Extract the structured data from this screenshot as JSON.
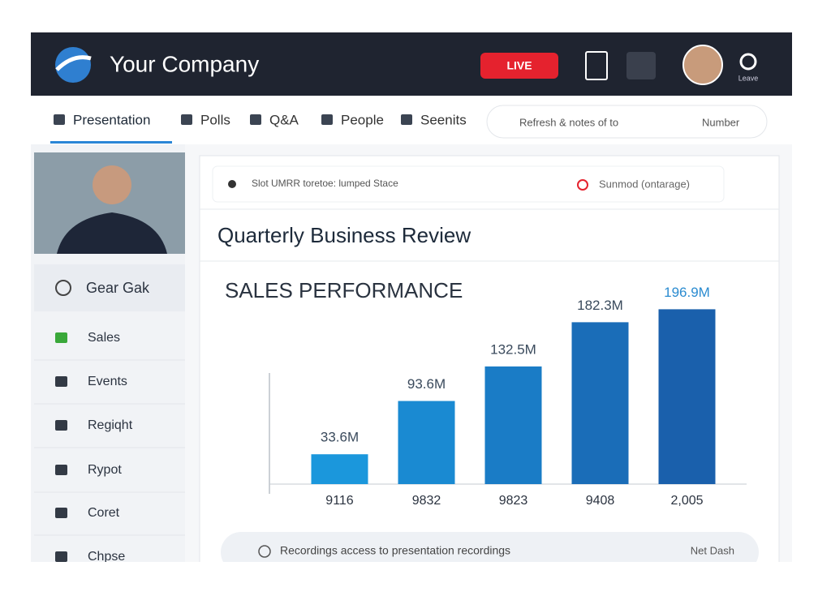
{
  "header": {
    "company": "Your Company",
    "live_button": "LIVE",
    "profile_label": "Leave"
  },
  "tabs": [
    "Presentation",
    "Polls",
    "Q&A",
    "People",
    "Seenits"
  ],
  "toolbar_right": {
    "text": "Refresh & notes of to",
    "menu": "Number"
  },
  "sidebar": {
    "section": "Gear Gak",
    "items": [
      "Sales",
      "Events",
      "Regiqht",
      "Rypot",
      "Coret",
      "Chpse"
    ]
  },
  "slide_toolbar": {
    "left": "Slot UMRR toretoe: lumped Stace",
    "right": "Sunmod (ontarage)"
  },
  "slide_title": "Quarterly Business Review",
  "chart_data": {
    "type": "bar",
    "title": "SALES PERFORMANCE",
    "categories": [
      "9116",
      "9832",
      "9823",
      "9408",
      "2,005"
    ],
    "values": [
      33.6,
      93.6,
      132.5,
      182.3,
      196.9
    ],
    "value_labels": [
      "33.6M",
      "93.6M",
      "132.5M",
      "182.3M",
      "196.9M"
    ],
    "colors": [
      "#1b97dc",
      "#1a8ad2",
      "#1a7cc6",
      "#1a6db8",
      "#1a60ac"
    ],
    "ylim": [
      0,
      200
    ]
  },
  "footer": {
    "text": "Recordings access to presentation recordings",
    "link": "Net Dash"
  }
}
